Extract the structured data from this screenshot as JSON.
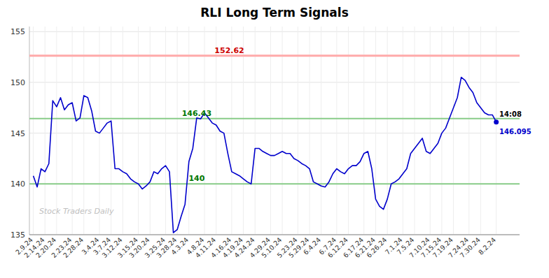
{
  "chart_data": {
    "type": "line",
    "title": "RLI Long Term Signals",
    "categories": [
      "2.9.24",
      null,
      null,
      "2.14.24",
      null,
      null,
      "2.20.24",
      null,
      null,
      null,
      "2.23.24",
      null,
      null,
      "2.28.24",
      null,
      null,
      null,
      "3.4.24",
      null,
      null,
      "3.7.24",
      null,
      null,
      "3.12.24",
      null,
      null,
      null,
      "3.15.24",
      null,
      null,
      "3.20.24",
      null,
      null,
      null,
      "3.25.24",
      null,
      null,
      "3.28.24",
      null,
      null,
      "4.3.24",
      null,
      null,
      null,
      "4.8.24",
      null,
      null,
      "4.11.24",
      null,
      null,
      null,
      "4.16.24",
      null,
      null,
      "4.19.24",
      null,
      null,
      "4.24.24",
      null,
      null,
      null,
      "4.29.24",
      null,
      null,
      "5.10.24",
      null,
      null,
      null,
      "5.23.24",
      null,
      null,
      "5.29.24",
      null,
      null,
      "6.4.24",
      null,
      null,
      null,
      "6.7.24",
      null,
      null,
      "6.12.24",
      null,
      null,
      null,
      "6.17.24",
      null,
      null,
      "6.21.24",
      null,
      null,
      "6.26.24",
      null,
      null,
      null,
      "7.1.24",
      null,
      null,
      "7.5.24",
      null,
      null,
      null,
      "7.10.24",
      null,
      null,
      "7.15.24",
      null,
      null,
      "7.19.24",
      null,
      null,
      null,
      "7.24.24",
      null,
      null,
      "7.30.24",
      null,
      null,
      null,
      "8.2.24"
    ],
    "values": [
      140.8,
      139.7,
      141.5,
      141.2,
      142.0,
      148.2,
      147.6,
      148.5,
      147.3,
      147.8,
      148.0,
      146.2,
      146.5,
      148.7,
      148.5,
      147.2,
      145.2,
      145.0,
      145.5,
      146.0,
      146.2,
      141.5,
      141.5,
      141.2,
      141.0,
      140.5,
      140.2,
      140.0,
      139.5,
      139.8,
      140.2,
      141.2,
      141.0,
      141.5,
      141.8,
      141.2,
      135.2,
      135.5,
      136.8,
      138.0,
      142.2,
      143.5,
      146.5,
      146.4,
      147.0,
      146.5,
      146.0,
      145.8,
      145.2,
      145.0,
      143.0,
      141.2,
      141.0,
      140.8,
      140.5,
      140.2,
      140.0,
      143.5,
      143.5,
      143.2,
      143.0,
      142.8,
      142.8,
      143.0,
      143.2,
      143.0,
      143.0,
      142.5,
      142.3,
      142.0,
      141.8,
      141.5,
      140.2,
      140.0,
      139.8,
      139.7,
      140.2,
      141.0,
      141.5,
      141.2,
      141.0,
      141.5,
      141.8,
      141.8,
      142.2,
      143.0,
      143.2,
      141.5,
      138.5,
      137.8,
      137.5,
      138.5,
      140.0,
      140.2,
      140.5,
      141.0,
      141.5,
      143.0,
      143.5,
      144.0,
      144.5,
      143.2,
      143.0,
      143.5,
      144.0,
      145.0,
      145.5,
      146.5,
      147.5,
      148.5,
      150.5,
      150.2,
      149.5,
      149.0,
      148.0,
      147.5,
      147.0,
      146.8,
      146.8,
      146.095
    ],
    "color": "#0000cc",
    "xlim": [
      -1,
      125
    ],
    "ylim": [
      135,
      155.5
    ],
    "yticks": [
      135,
      140,
      145,
      150,
      155
    ],
    "grid": true,
    "reference_lines": [
      {
        "value": 152.62,
        "label": "152.62",
        "color": "#ffaaaa",
        "label_color": "#cc0000"
      },
      {
        "value": 146.43,
        "label": "146.43",
        "color": "#88cc88",
        "label_color": "#007700"
      },
      {
        "value": 140.0,
        "label": "140",
        "color": "#88cc88",
        "label_color": "#007700"
      }
    ],
    "last_point": {
      "value": 146.095,
      "label": "146.095",
      "time": "14:08"
    },
    "watermark": "Stock Traders Daily"
  }
}
